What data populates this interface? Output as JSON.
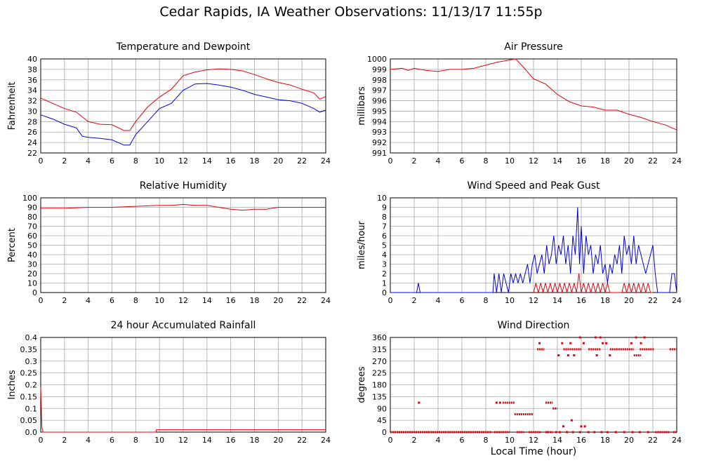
{
  "title": "Cedar Rapids, IA Weather Observations: 11/13/17 11:55p",
  "xlabel": "Local Time (hour)",
  "colors": {
    "red": "#e8000b",
    "blue": "#0000dd",
    "grid": "#a9a9a9"
  },
  "chart_data": [
    {
      "id": "temp",
      "type": "line",
      "title": "Temperature and Dewpoint",
      "ylabel": "Fahrenheit",
      "xlim": [
        0,
        24
      ],
      "ylim": [
        22,
        40
      ],
      "xticks": [
        0,
        2,
        4,
        6,
        8,
        10,
        12,
        14,
        16,
        18,
        20,
        22,
        24
      ],
      "yticks": [
        22,
        24,
        26,
        28,
        30,
        32,
        34,
        36,
        38,
        40
      ],
      "grid": true,
      "series": [
        {
          "color": "red",
          "x": [
            0,
            1,
            2,
            3,
            4,
            5,
            6,
            7,
            7.5,
            8,
            9,
            10,
            11,
            12,
            13,
            14,
            15,
            16,
            17,
            18,
            19,
            20,
            21,
            22,
            23,
            23.5,
            24
          ],
          "y": [
            32.5,
            31.5,
            30.5,
            29.8,
            28.0,
            27.5,
            27.4,
            26.3,
            26.3,
            28.0,
            30.8,
            32.7,
            34.2,
            36.8,
            37.5,
            37.9,
            38.1,
            38.0,
            37.7,
            37.0,
            36.2,
            35.5,
            35.0,
            34.2,
            33.5,
            32.3,
            32.8
          ]
        },
        {
          "color": "blue",
          "x": [
            0,
            1,
            2,
            3,
            3.5,
            4,
            5,
            6,
            7,
            7.5,
            8,
            9,
            10,
            11,
            12,
            13,
            14,
            15,
            16,
            17,
            18,
            19,
            20,
            21,
            22,
            23,
            23.5,
            24
          ],
          "y": [
            29.3,
            28.5,
            27.5,
            26.8,
            25.2,
            25.0,
            24.8,
            24.5,
            23.5,
            23.5,
            25.5,
            28.0,
            30.5,
            31.5,
            34.0,
            35.2,
            35.3,
            35.0,
            34.6,
            34.0,
            33.2,
            32.7,
            32.2,
            32.0,
            31.5,
            30.5,
            29.8,
            30.2
          ]
        }
      ]
    },
    {
      "id": "pressure",
      "type": "line",
      "title": "Air Pressure",
      "ylabel": "millibars",
      "xlim": [
        0,
        24
      ],
      "ylim": [
        991,
        1000
      ],
      "xticks": [
        0,
        2,
        4,
        6,
        8,
        10,
        12,
        14,
        16,
        18,
        20,
        22,
        24
      ],
      "yticks": [
        991,
        992,
        993,
        994,
        995,
        996,
        997,
        998,
        999,
        1000
      ],
      "grid": true,
      "series": [
        {
          "color": "red",
          "x": [
            0,
            1,
            1.5,
            2,
            3,
            4,
            5,
            6,
            7,
            8,
            9,
            10,
            10.5,
            11,
            12,
            13,
            14,
            15,
            16,
            17,
            18,
            19,
            20,
            21,
            22,
            23,
            24
          ],
          "y": [
            999.0,
            999.1,
            998.9,
            999.1,
            998.9,
            998.8,
            999.0,
            999.0,
            999.1,
            999.4,
            999.7,
            999.9,
            1000.0,
            999.4,
            998.1,
            997.6,
            996.6,
            995.9,
            995.5,
            995.4,
            995.1,
            995.1,
            994.7,
            994.4,
            994.0,
            993.7,
            993.2
          ]
        }
      ]
    },
    {
      "id": "humidity",
      "type": "line",
      "title": "Relative Humidity",
      "ylabel": "Percent",
      "xlim": [
        0,
        24
      ],
      "ylim": [
        0,
        100
      ],
      "xticks": [
        0,
        2,
        4,
        6,
        8,
        10,
        12,
        14,
        16,
        18,
        20,
        22,
        24
      ],
      "yticks": [
        0,
        10,
        20,
        30,
        40,
        50,
        60,
        70,
        80,
        90,
        100
      ],
      "grid": true,
      "series": [
        {
          "color": "red",
          "x": [
            0,
            2,
            4,
            6,
            8,
            10,
            11,
            12,
            13,
            14,
            15,
            16,
            17,
            18,
            19,
            20,
            22,
            23,
            24
          ],
          "y": [
            89,
            89,
            90,
            90,
            91,
            92,
            92,
            93,
            92,
            92,
            90,
            88,
            87,
            88,
            88,
            90,
            90,
            90,
            90
          ]
        }
      ]
    },
    {
      "id": "wind",
      "type": "line",
      "title": "Wind Speed and Peak Gust",
      "ylabel": "miles/hour",
      "xlim": [
        0,
        24
      ],
      "ylim": [
        0,
        10
      ],
      "xticks": [
        0,
        2,
        4,
        6,
        8,
        10,
        12,
        14,
        16,
        18,
        20,
        22,
        24
      ],
      "yticks": [
        0,
        1,
        2,
        3,
        4,
        5,
        6,
        7,
        8,
        9,
        10
      ],
      "grid": true,
      "series": [
        {
          "color": "blue",
          "x": [
            0,
            2.2,
            2.35,
            2.5,
            8.6,
            8.7,
            8.9,
            9.1,
            9.3,
            9.5,
            9.7,
            9.9,
            10.1,
            10.3,
            10.5,
            10.7,
            10.9,
            11.1,
            11.3,
            11.5,
            11.7,
            11.9,
            12.1,
            12.3,
            12.5,
            12.7,
            12.9,
            13.1,
            13.3,
            13.5,
            13.7,
            13.9,
            14.1,
            14.3,
            14.5,
            14.7,
            14.9,
            15.1,
            15.3,
            15.5,
            15.7,
            15.85,
            16.0,
            16.2,
            16.4,
            16.6,
            16.8,
            17.0,
            17.2,
            17.4,
            17.6,
            17.8,
            18.0,
            18.2,
            18.4,
            18.6,
            18.8,
            19.0,
            19.2,
            19.4,
            19.6,
            19.8,
            20.0,
            20.2,
            20.4,
            20.6,
            20.8,
            21.0,
            21.2,
            21.4,
            21.6,
            21.8,
            22.0,
            22.2,
            22.4,
            23.4,
            23.6,
            23.8,
            24
          ],
          "y": [
            0,
            0,
            1,
            0,
            0,
            2,
            0,
            2,
            0,
            2,
            1,
            0,
            2,
            1,
            2,
            1,
            2,
            1,
            2,
            3,
            1,
            3,
            4,
            2,
            3,
            4,
            2,
            5,
            3,
            4,
            6,
            3,
            5,
            4,
            6,
            3,
            5,
            2,
            6,
            4,
            9,
            3,
            7,
            2,
            6,
            4,
            5,
            2,
            4,
            3,
            5,
            2,
            3,
            1,
            3,
            2,
            4,
            3,
            5,
            2,
            6,
            4,
            5,
            3,
            6,
            3,
            5,
            4,
            3,
            2,
            3,
            4,
            5,
            2,
            0,
            0,
            2,
            2,
            0
          ]
        },
        {
          "color": "red",
          "x": [
            12.0,
            12.2,
            12.4,
            12.6,
            12.8,
            13.0,
            13.2,
            13.4,
            13.6,
            13.8,
            14.0,
            14.2,
            14.4,
            14.6,
            14.8,
            15.0,
            15.2,
            15.4,
            15.6,
            15.8,
            16.0,
            16.2,
            16.4,
            16.6,
            16.8,
            17.0,
            17.2,
            17.4,
            17.6,
            17.8,
            18.0,
            18.2,
            18.4,
            19.4,
            19.6,
            19.8,
            20.0,
            20.2,
            20.4,
            20.6,
            20.8,
            21.0,
            21.2,
            21.4,
            21.6,
            21.8,
            22.0
          ],
          "y": [
            0,
            1,
            0,
            1,
            0,
            1,
            0,
            1,
            0,
            1,
            0,
            1,
            0,
            1,
            0,
            1,
            0,
            1,
            0,
            2,
            0,
            1,
            0,
            1,
            0,
            1,
            0,
            1,
            0,
            1,
            0,
            1,
            0,
            0,
            1,
            0,
            1,
            0,
            1,
            0,
            1,
            0,
            1,
            0,
            1,
            0,
            0
          ]
        }
      ]
    },
    {
      "id": "rain",
      "type": "line",
      "title": "24 hour Accumulated Rainfall",
      "ylabel": "Inches",
      "xlim": [
        0,
        24
      ],
      "ylim": [
        0,
        0.4
      ],
      "xticks": [
        0,
        2,
        4,
        6,
        8,
        10,
        12,
        14,
        16,
        18,
        20,
        22,
        24
      ],
      "yticks": [
        0,
        0.05,
        0.1,
        0.15,
        0.2,
        0.25,
        0.3,
        0.35,
        0.4
      ],
      "ytick_labels": [
        "0.0",
        "0.05",
        "0.1",
        "0.15",
        "0.2",
        "0.25",
        "0.3",
        "0.35",
        "0.4"
      ],
      "grid": true,
      "series": [
        {
          "color": "red",
          "x": [
            0,
            0.1,
            0.2,
            9.7,
            9.75,
            24
          ],
          "y": [
            0.19,
            0.02,
            0.0,
            0.0,
            0.01,
            0.01
          ]
        }
      ]
    },
    {
      "id": "direction",
      "type": "scatter",
      "title": "Wind Direction",
      "ylabel": "degrees",
      "xlim": [
        0,
        24
      ],
      "ylim": [
        0,
        360
      ],
      "xticks": [
        0,
        2,
        4,
        6,
        8,
        10,
        12,
        14,
        16,
        18,
        20,
        22,
        24
      ],
      "yticks": [
        0,
        45,
        90,
        135,
        180,
        225,
        270,
        315,
        360
      ],
      "grid": true,
      "segments": [
        {
          "y": 0,
          "x": [
            0,
            8.5
          ]
        },
        {
          "y": 0,
          "x": [
            8.7,
            10.0
          ]
        },
        {
          "y": 0,
          "x": [
            10.6,
            11.2
          ]
        },
        {
          "y": 0,
          "x": [
            11.6,
            12.6
          ]
        },
        {
          "y": 0,
          "x": [
            13.0,
            13.6
          ]
        },
        {
          "y": 0,
          "x": [
            22.2,
            23.4
          ]
        },
        {
          "y": 0,
          "x": [
            23.7,
            24
          ]
        },
        {
          "y": 315,
          "x": [
            12.3,
            12.9
          ]
        },
        {
          "y": 315,
          "x": [
            14.5,
            16.0
          ]
        },
        {
          "y": 315,
          "x": [
            16.6,
            17.6
          ]
        },
        {
          "y": 315,
          "x": [
            18.4,
            20.4
          ]
        },
        {
          "y": 315,
          "x": [
            20.9,
            22.1
          ]
        },
        {
          "y": 315,
          "x": [
            23.4,
            24
          ]
        },
        {
          "y": 112,
          "x": [
            9.4,
            10.4
          ]
        },
        {
          "y": 68,
          "x": [
            10.4,
            12.0
          ]
        },
        {
          "y": 112,
          "x": [
            13.0,
            13.6
          ]
        },
        {
          "y": 90,
          "x": [
            13.6,
            14.0
          ]
        },
        {
          "y": 292,
          "x": [
            20.4,
            21.0
          ]
        }
      ],
      "points": [
        [
          2.4,
          112
        ],
        [
          8.9,
          112
        ],
        [
          9.2,
          112
        ],
        [
          13.1,
          0
        ],
        [
          13.9,
          0
        ],
        [
          14.2,
          0
        ],
        [
          14.8,
          0
        ],
        [
          15.3,
          0
        ],
        [
          15.9,
          0
        ],
        [
          16.6,
          0
        ],
        [
          17.1,
          0
        ],
        [
          17.7,
          0
        ],
        [
          18.2,
          0
        ],
        [
          18.9,
          0
        ],
        [
          19.6,
          0
        ],
        [
          20.3,
          0
        ],
        [
          20.9,
          0
        ],
        [
          21.6,
          0
        ],
        [
          12.5,
          338
        ],
        [
          14.1,
          292
        ],
        [
          14.4,
          338
        ],
        [
          14.9,
          292
        ],
        [
          15.1,
          338
        ],
        [
          15.4,
          292
        ],
        [
          15.9,
          360
        ],
        [
          16.2,
          338
        ],
        [
          17.2,
          360
        ],
        [
          17.6,
          360
        ],
        [
          17.8,
          338
        ],
        [
          17.3,
          292
        ],
        [
          18.1,
          338
        ],
        [
          18.4,
          292
        ],
        [
          20.2,
          338
        ],
        [
          20.6,
          360
        ],
        [
          21.0,
          338
        ],
        [
          21.3,
          360
        ],
        [
          14.5,
          22
        ],
        [
          15.2,
          45
        ],
        [
          16.0,
          22
        ],
        [
          16.3,
          22
        ]
      ]
    }
  ]
}
